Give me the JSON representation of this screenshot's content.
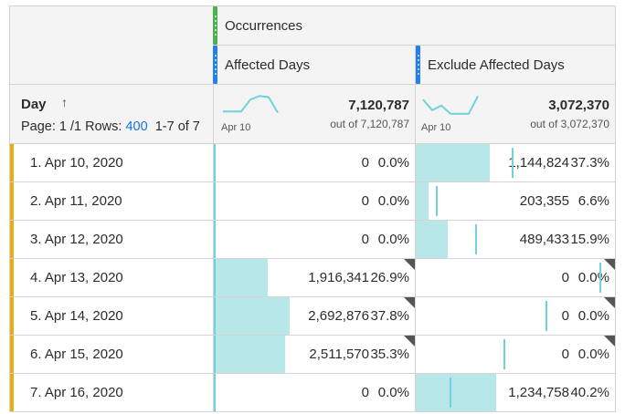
{
  "header": {
    "metric_group": "Occurrences",
    "segments": [
      "Affected Days",
      "Exclude Affected Days"
    ],
    "group_color": "#4caf50",
    "segment_color": "#2680eb"
  },
  "dimension": {
    "label": "Day",
    "sort_icon": "arrow-up-icon",
    "page_text": "Page: 1 /1",
    "rows_label": "Rows:",
    "rows_value": "400",
    "range_text": "1-7 of 7"
  },
  "totals": [
    {
      "value": "7,120,787",
      "out_of": "out of 7,120,787",
      "spark_label": "Apr 10",
      "sparkline": [
        0.3,
        0.3,
        0.3,
        0.8,
        0.95,
        0.9,
        0.25
      ]
    },
    {
      "value": "3,072,370",
      "out_of": "out of 3,072,370",
      "spark_label": "Apr 10",
      "sparkline": [
        0.8,
        0.35,
        0.55,
        0.2,
        0.2,
        0.2,
        0.95
      ]
    }
  ],
  "rows": [
    {
      "label": "1. Apr 10, 2020",
      "a_value": "0",
      "a_pct": "0.0%",
      "a_frac": 0.0,
      "b_value": "1,144,824",
      "b_pct": "37.3%",
      "b_frac": 0.373,
      "a_flag": false,
      "b_flag": false
    },
    {
      "label": "2. Apr 11, 2020",
      "a_value": "0",
      "a_pct": "0.0%",
      "a_frac": 0.0,
      "b_value": "203,355",
      "b_pct": "6.6%",
      "b_frac": 0.066,
      "a_flag": false,
      "b_flag": false
    },
    {
      "label": "3. Apr 12, 2020",
      "a_value": "0",
      "a_pct": "0.0%",
      "a_frac": 0.0,
      "b_value": "489,433",
      "b_pct": "15.9%",
      "b_frac": 0.159,
      "a_flag": false,
      "b_flag": false
    },
    {
      "label": "4. Apr 13, 2020",
      "a_value": "1,916,341",
      "a_pct": "26.9%",
      "a_frac": 0.269,
      "b_value": "0",
      "b_pct": "0.0%",
      "b_frac": 0.0,
      "a_flag": true,
      "b_flag": true
    },
    {
      "label": "5. Apr 14, 2020",
      "a_value": "2,692,876",
      "a_pct": "37.8%",
      "a_frac": 0.378,
      "b_value": "0",
      "b_pct": "0.0%",
      "b_frac": 0.0,
      "a_flag": true,
      "b_flag": true
    },
    {
      "label": "6. Apr 15, 2020",
      "a_value": "2,511,570",
      "a_pct": "35.3%",
      "a_frac": 0.353,
      "b_value": "0",
      "b_pct": "0.0%",
      "b_frac": 0.0,
      "a_flag": true,
      "b_flag": true
    },
    {
      "label": "7. Apr 16, 2020",
      "a_value": "0",
      "a_pct": "0.0%",
      "a_frac": 0.0,
      "b_value": "1,234,758",
      "b_pct": "40.2%",
      "b_frac": 0.402,
      "a_flag": false,
      "b_flag": false
    }
  ],
  "colors": {
    "bar": "#b8e7ea",
    "line": "#6ed3dc",
    "row_accent": "#e6b10e",
    "link": "#1473e6"
  }
}
